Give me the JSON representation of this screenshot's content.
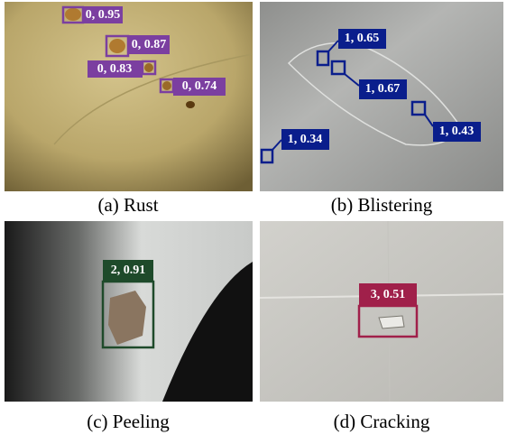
{
  "panels": [
    {
      "caption": "(a) Rust",
      "detections": [
        {
          "label": "0, 0.95"
        },
        {
          "label": "0, 0.87"
        },
        {
          "label": "0, 0.83"
        },
        {
          "label": "0, 0.74"
        }
      ]
    },
    {
      "caption": "(b) Blistering",
      "detections": [
        {
          "label": "1, 0.65"
        },
        {
          "label": "1, 0.67"
        },
        {
          "label": "1, 0.43"
        },
        {
          "label": "1, 0.34"
        }
      ]
    },
    {
      "caption": "(c) Peeling",
      "detections": [
        {
          "label": "2, 0.91"
        }
      ]
    },
    {
      "caption": "(d) Cracking",
      "detections": [
        {
          "label": "3, 0.51"
        }
      ]
    }
  ]
}
